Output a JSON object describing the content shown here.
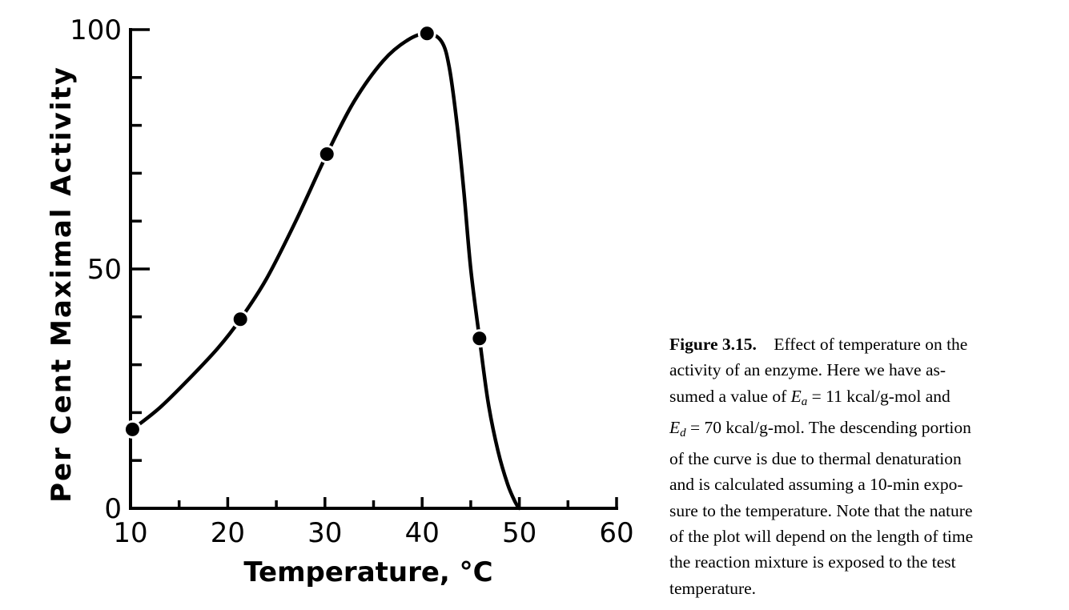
{
  "chart_data": {
    "type": "line",
    "xlabel": "Temperature, °C",
    "ylabel": "Per Cent Maximal Activity",
    "xlim": [
      10,
      60
    ],
    "ylim": [
      0,
      100
    ],
    "x_ticks": [
      "10",
      "20",
      "30",
      "40",
      "50",
      "60"
    ],
    "y_ticks": [
      "0",
      "50",
      "100"
    ],
    "grid": false,
    "legend": "none",
    "series": [
      {
        "values_kind": "measured points",
        "x": [
          10.2,
          21.3,
          30.2,
          40.5,
          45.9
        ],
        "y": [
          16.5,
          39.5,
          74,
          99.2,
          35.5
        ]
      }
    ],
    "curve": {
      "x": [
        10.2,
        13,
        16,
        19,
        21.3,
        24,
        27,
        30.2,
        33,
        36,
        38.5,
        40.5,
        42,
        42.8,
        43.6,
        44.3,
        45,
        45.9,
        46.8,
        47.8,
        48.8,
        49.6,
        50
      ],
      "y": [
        16.5,
        21,
        27,
        33.5,
        39.5,
        48,
        60,
        74,
        85,
        93.5,
        97.8,
        99.2,
        97.5,
        92,
        80,
        66,
        50,
        35.5,
        22,
        12,
        5,
        1.2,
        0
      ]
    }
  },
  "caption": {
    "label": "Figure 3.15.",
    "line1": "Effect of temperature on the",
    "line2": "activity of an enzyme. Here we have as-",
    "line3_pre": "sumed a value of ",
    "ea_sym": "E",
    "ea_sub": "a",
    "line3_post": " = 11 kcal/g-mol and",
    "ed_sym": "E",
    "ed_sub": "d",
    "line4_post": " = 70 kcal/g-mol. The descending portion",
    "line5": "of the curve is due to thermal denaturation",
    "line6": "and is calculated assuming a 10-min expo-",
    "line7": "sure to the temperature. Note that the nature",
    "line8": "of the plot will depend on the length of time",
    "line9": "the reaction mixture is exposed to the test",
    "line10": "temperature."
  }
}
